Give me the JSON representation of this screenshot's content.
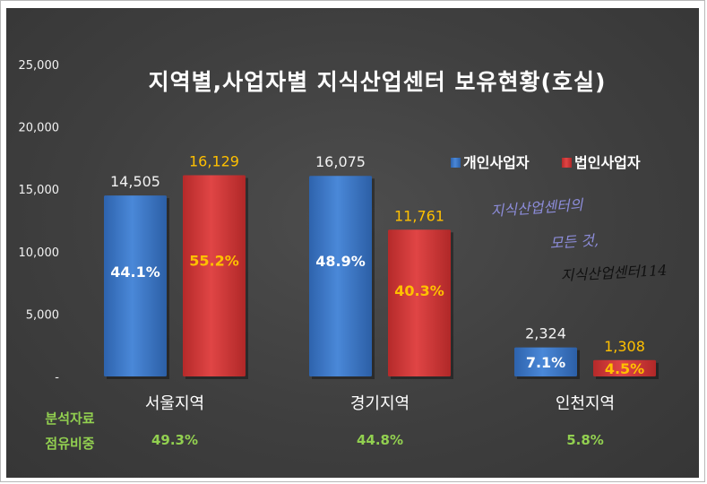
{
  "chart_data": {
    "type": "bar",
    "title": "지역별,사업자별 지식산업센터 보유현황(호실)",
    "categories": [
      "서울지역",
      "경기지역",
      "인천지역"
    ],
    "ylim": [
      0,
      25000
    ],
    "y_ticks": [
      "25,000",
      "20,000",
      "15,000",
      "10,000",
      "5,000",
      "-"
    ],
    "y_tick_values": [
      25000,
      20000,
      15000,
      10000,
      5000,
      0
    ],
    "legend_position": "top-right",
    "series": [
      {
        "name": "개인사업자",
        "color": "#3c78c8",
        "values": [
          14505,
          16075,
          2324
        ],
        "value_labels": [
          "14,505",
          "16,075",
          "2,324"
        ],
        "pct_labels": [
          "44.1%",
          "48.9%",
          "7.1%"
        ]
      },
      {
        "name": "법인사업자",
        "color": "#cc3333",
        "values": [
          16129,
          11761,
          1308
        ],
        "value_labels": [
          "16,129",
          "11,761",
          "1,308"
        ],
        "pct_labels": [
          "55.2%",
          "40.3%",
          "4.5%"
        ]
      }
    ],
    "share_row": {
      "label_line1": "분석자료",
      "label_line2": "점유비중",
      "values": [
        "49.3%",
        "44.8%",
        "5.8%"
      ]
    },
    "annotation": {
      "line1": "지식산업센터의",
      "line2": "모든 것,",
      "line3": "지식산업센터114"
    },
    "colors": {
      "white_label": "#f2f2f2",
      "orange_label": "#ffc000",
      "share_green": "#92d050"
    }
  }
}
